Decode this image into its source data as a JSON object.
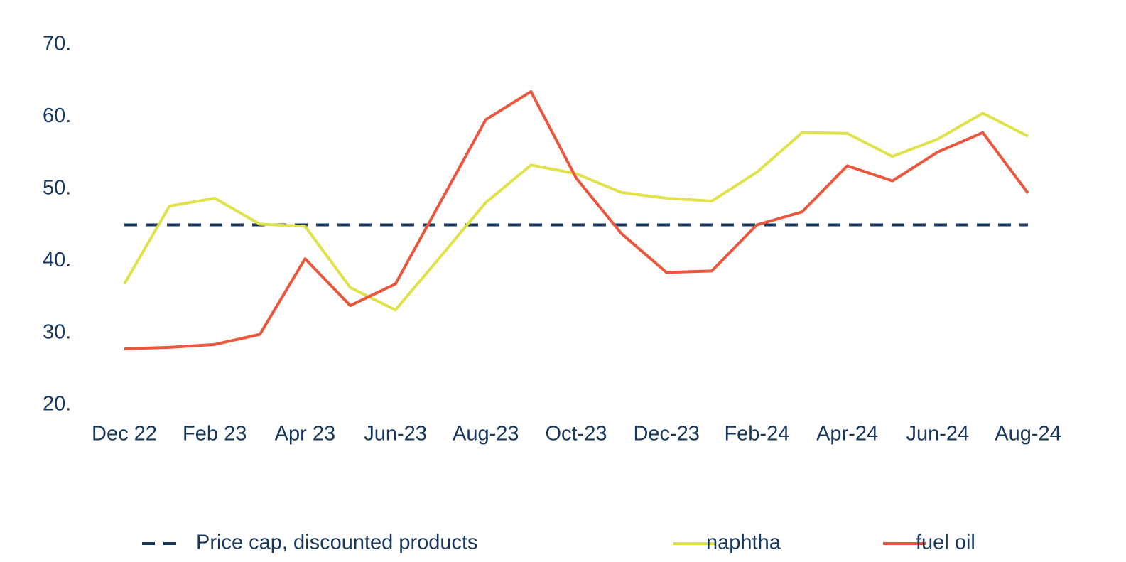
{
  "chart_data": {
    "type": "line",
    "categories": [
      "Dec 22",
      null,
      "Feb 23",
      null,
      "Apr 23",
      null,
      "Jun-23",
      null,
      "Aug-23",
      null,
      "Oct-23",
      null,
      "Dec-23",
      null,
      "Feb-24",
      null,
      "Apr-24",
      null,
      "Jun-24",
      null,
      "Aug-24"
    ],
    "series": [
      {
        "name": "Price cap, discounted products",
        "color": "#17375e",
        "dashed": true,
        "values": [
          45,
          45,
          45,
          45,
          45,
          45,
          45,
          45,
          45,
          45,
          45,
          45,
          45,
          45,
          45,
          45,
          45,
          45,
          45,
          45,
          45
        ]
      },
      {
        "name": "naphtha",
        "color": "#dfe24a",
        "dashed": false,
        "values": [
          36.8,
          47.6,
          48.7,
          45.1,
          44.8,
          36.3,
          33.2,
          40.6,
          48.1,
          53.3,
          52.1,
          49.5,
          48.7,
          48.3,
          52.3,
          57.8,
          57.7,
          54.5,
          56.9,
          60.5,
          57.3
        ]
      },
      {
        "name": "fuel oil",
        "color": "#ea573c",
        "dashed": false,
        "values": [
          27.8,
          28.0,
          28.4,
          29.8,
          40.3,
          33.8,
          36.8,
          48.2,
          59.6,
          63.5,
          51.5,
          43.8,
          38.4,
          38.6,
          45.0,
          46.8,
          53.2,
          51.1,
          55.1,
          57.8,
          49.4
        ]
      }
    ],
    "ylim": [
      20,
      70
    ],
    "yticks": [
      {
        "value": 20,
        "label": "20."
      },
      {
        "value": 30,
        "label": "30."
      },
      {
        "value": 40,
        "label": "40."
      },
      {
        "value": 50,
        "label": "50."
      },
      {
        "value": 60,
        "label": "60."
      },
      {
        "value": 70,
        "label": "70."
      }
    ],
    "grid": false,
    "legend": "bottom"
  }
}
